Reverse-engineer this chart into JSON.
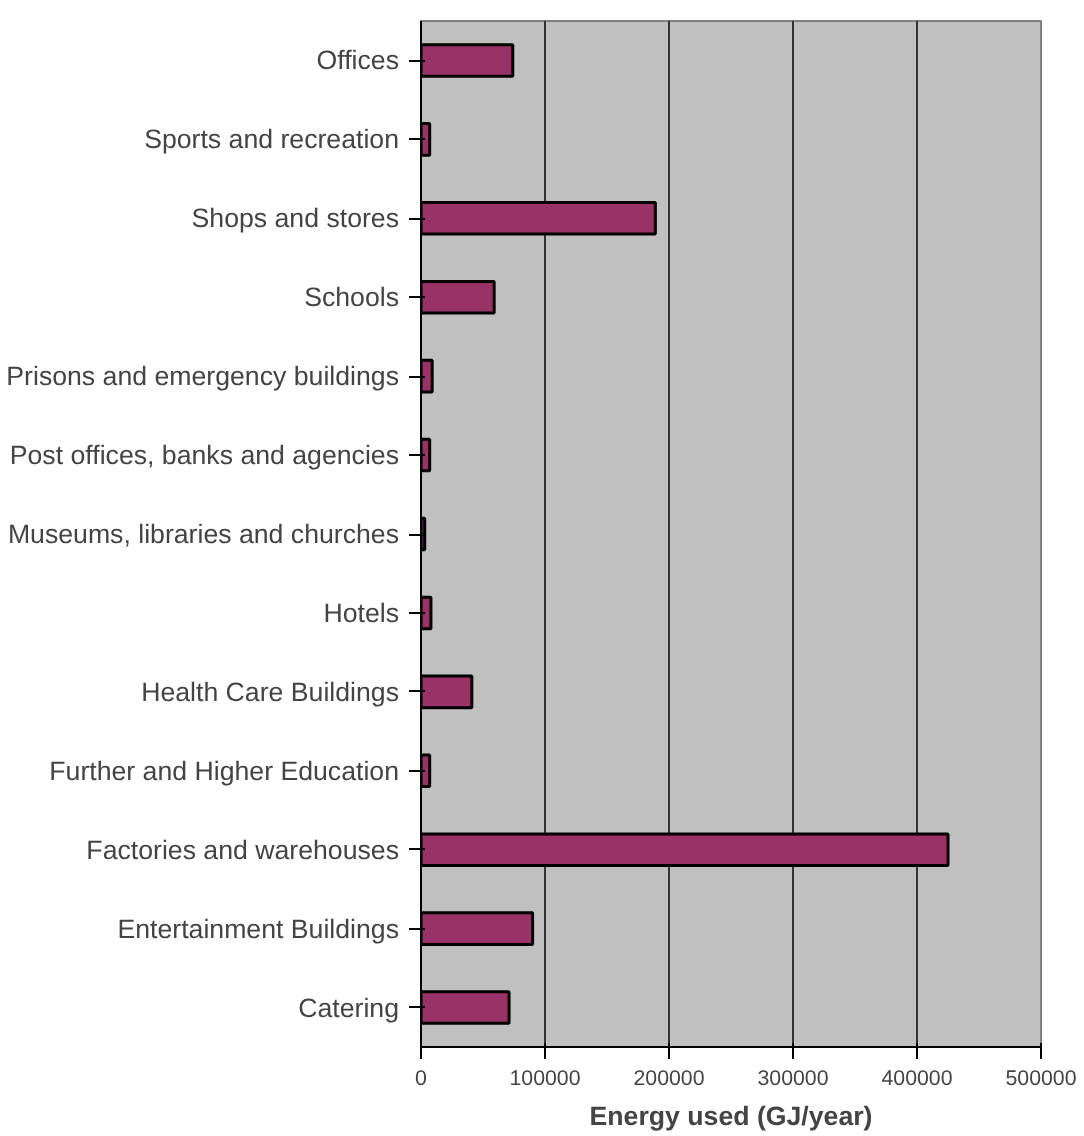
{
  "chart_data": {
    "type": "bar",
    "orientation": "horizontal",
    "xlabel": "Energy used (GJ/year)",
    "categories": [
      "Offices",
      "Sports and recreation",
      "Shops and stores",
      "Schools",
      "Prisons and emergency buildings",
      "Post offices, banks and agencies",
      "Museums, libraries and churches",
      "Hotels",
      "Health Care Buildings",
      "Further and Higher Education",
      "Factories and warehouses",
      "Entertainment Buildings",
      "Catering"
    ],
    "values": [
      74000,
      7000,
      189000,
      59000,
      9000,
      7000,
      3000,
      8000,
      41000,
      7000,
      425000,
      90000,
      71000
    ],
    "color": "#993366",
    "xlim": [
      0,
      500000
    ],
    "xticks": [
      0,
      100000,
      200000,
      300000,
      400000,
      500000
    ],
    "grid": "x"
  }
}
